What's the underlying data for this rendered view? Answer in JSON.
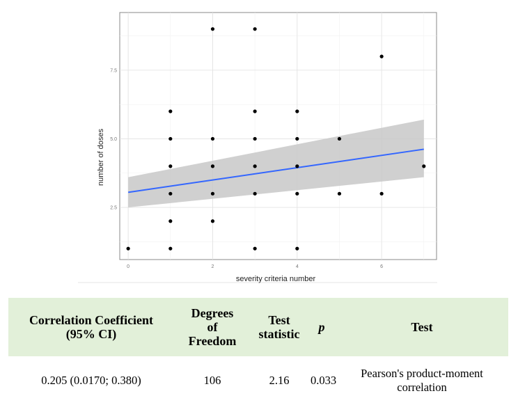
{
  "chart_data": {
    "type": "scatter",
    "xlabel": "severity criteria number",
    "ylabel": "number of doses",
    "x_ticks": [
      "0",
      "2",
      "4",
      "6"
    ],
    "y_ticks": [
      "2.5",
      "5.0",
      "7.5"
    ],
    "xlim": [
      -0.2,
      7.3
    ],
    "ylim": [
      0.6,
      9.6
    ],
    "grid": true,
    "points": [
      {
        "x": 0,
        "y": 1
      },
      {
        "x": 1,
        "y": 1
      },
      {
        "x": 1,
        "y": 2
      },
      {
        "x": 1,
        "y": 3
      },
      {
        "x": 1,
        "y": 4
      },
      {
        "x": 1,
        "y": 5
      },
      {
        "x": 1,
        "y": 6
      },
      {
        "x": 2,
        "y": 2
      },
      {
        "x": 2,
        "y": 3
      },
      {
        "x": 2,
        "y": 4
      },
      {
        "x": 2,
        "y": 5
      },
      {
        "x": 2,
        "y": 9
      },
      {
        "x": 3,
        "y": 1
      },
      {
        "x": 3,
        "y": 3
      },
      {
        "x": 3,
        "y": 4
      },
      {
        "x": 3,
        "y": 5
      },
      {
        "x": 3,
        "y": 6
      },
      {
        "x": 3,
        "y": 9
      },
      {
        "x": 4,
        "y": 1
      },
      {
        "x": 4,
        "y": 3
      },
      {
        "x": 4,
        "y": 4
      },
      {
        "x": 4,
        "y": 5
      },
      {
        "x": 4,
        "y": 6
      },
      {
        "x": 5,
        "y": 3
      },
      {
        "x": 5,
        "y": 5
      },
      {
        "x": 6,
        "y": 3
      },
      {
        "x": 6,
        "y": 8
      },
      {
        "x": 7,
        "y": 4
      }
    ],
    "regression": {
      "x": [
        0,
        7
      ],
      "y": [
        3.05,
        4.62
      ],
      "ci_lower": [
        2.5,
        3.6
      ],
      "ci_upper": [
        3.6,
        5.7
      ],
      "line_color": "#3366ff",
      "band_color": "#c8c8c8"
    }
  },
  "table": {
    "headers": {
      "corr_line1": "Correlation Coefficient",
      "corr_line2": "(95% CI)",
      "df_line1": "Degrees",
      "df_line2": "of",
      "df_line3": "Freedom",
      "stat_line1": "Test",
      "stat_line2": "statistic",
      "p": "p",
      "test": "Test"
    },
    "row": {
      "correlation": "0.205 (0.0170; 0.380)",
      "df": "106",
      "statistic": "2.16",
      "p": "0.033",
      "test_line1": "Pearson's product-moment",
      "test_line2": "correlation"
    },
    "header_bg": "#e2f0d9"
  }
}
